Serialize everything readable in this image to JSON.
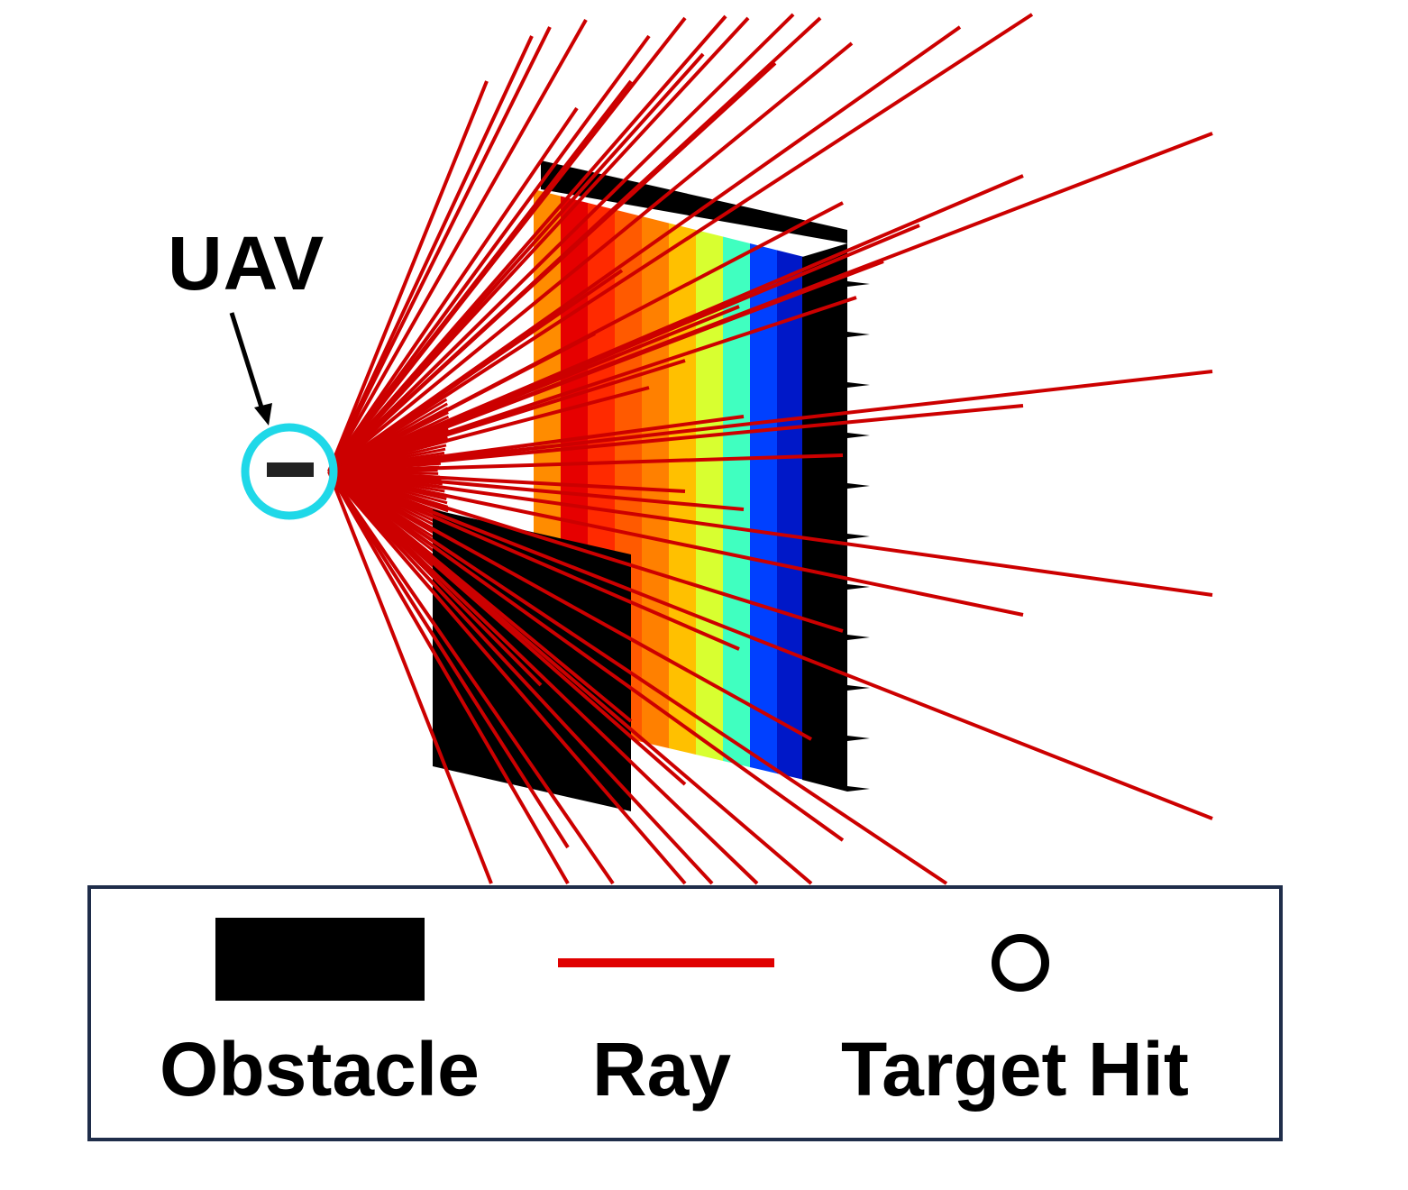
{
  "labels": {
    "uav": "UAV"
  },
  "legend": {
    "obstacle": "Obstacle",
    "ray": "Ray",
    "target_hit": "Target Hit"
  },
  "colors": {
    "ray": "#cc0000",
    "obstacle": "#000000",
    "uav_ring": "#1fd8e8",
    "legend_border": "#1f2d4a",
    "target_colormap": [
      "#ff8c00",
      "#e60000",
      "#ff2a00",
      "#ff5a00",
      "#ff8000",
      "#ffc000",
      "#d8ff30",
      "#40ffc0",
      "#0040ff",
      "#0018c8"
    ]
  }
}
